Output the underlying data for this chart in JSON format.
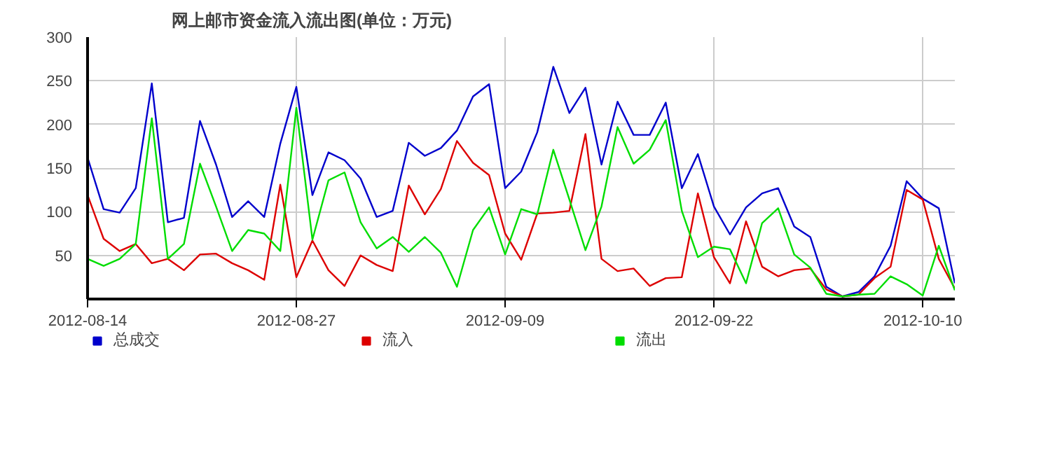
{
  "chart_data": {
    "type": "line",
    "title": "网上邮市资金流入流出图(单位：万元)",
    "categories": [
      "2012-08-14",
      null,
      null,
      null,
      null,
      null,
      null,
      null,
      null,
      null,
      null,
      null,
      null,
      "2012-08-27",
      null,
      null,
      null,
      null,
      null,
      null,
      null,
      null,
      null,
      null,
      null,
      null,
      "2012-09-09",
      null,
      null,
      null,
      null,
      null,
      null,
      null,
      null,
      null,
      null,
      null,
      null,
      "2012-09-22",
      null,
      null,
      null,
      null,
      null,
      null,
      null,
      null,
      null,
      null,
      null,
      null,
      "2012-10-10",
      null,
      null
    ],
    "series": [
      {
        "name": "总成交",
        "color": "#0000cc",
        "values": [
          162,
          103,
          99,
          127,
          247,
          88,
          93,
          204,
          154,
          94,
          112,
          94,
          178,
          243,
          119,
          168,
          159,
          138,
          94,
          101,
          179,
          164,
          173,
          193,
          232,
          246,
          127,
          146,
          191,
          266,
          213,
          242,
          154,
          226,
          188,
          188,
          225,
          127,
          166,
          106,
          74,
          105,
          121,
          127,
          83,
          71,
          14,
          3,
          8,
          26,
          61,
          135,
          115,
          104,
          18
        ]
      },
      {
        "name": "流入",
        "color": "#dd0000",
        "values": [
          119,
          69,
          55,
          63,
          41,
          46,
          33,
          51,
          52,
          41,
          33,
          22,
          131,
          25,
          67,
          33,
          15,
          50,
          39,
          32,
          130,
          97,
          126,
          181,
          156,
          142,
          75,
          45,
          98,
          99,
          101,
          189,
          46,
          32,
          35,
          15,
          24,
          25,
          121,
          48,
          18,
          89,
          37,
          26,
          33,
          35,
          11,
          3,
          5,
          24,
          37,
          125,
          114,
          46,
          12
        ]
      },
      {
        "name": "流出",
        "color": "#00dd00",
        "values": [
          46,
          38,
          46,
          63,
          207,
          46,
          63,
          155,
          106,
          55,
          79,
          75,
          55,
          219,
          68,
          136,
          145,
          88,
          58,
          71,
          54,
          71,
          53,
          14,
          79,
          105,
          51,
          103,
          97,
          171,
          114,
          56,
          106,
          197,
          155,
          171,
          205,
          101,
          48,
          60,
          57,
          18,
          87,
          104,
          51,
          36,
          6,
          3,
          5,
          6,
          26,
          17,
          4,
          61,
          10
        ]
      }
    ],
    "ylim": [
      0,
      300
    ],
    "yticks": [
      {
        "value": 0,
        "label": null
      },
      50,
      100,
      150,
      200,
      250,
      300
    ],
    "grid": true,
    "legend": "bottom",
    "marker": "none",
    "line_style": "solid"
  }
}
